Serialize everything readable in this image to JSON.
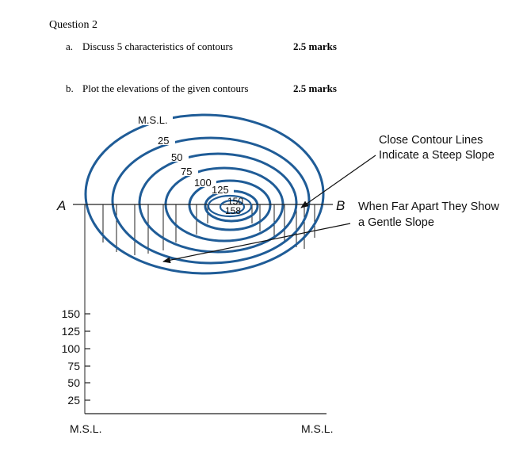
{
  "question": {
    "title": "Question 2",
    "part_a": {
      "letter": "a.",
      "text": "Discuss 5 characteristics of contours",
      "marks": "2.5 marks"
    },
    "part_b": {
      "letter": "b.",
      "text": "Plot the elevations of the given contours",
      "marks": "2.5 marks"
    }
  },
  "figure": {
    "contour_labels": [
      "M.S.L.",
      "25",
      "50",
      "75",
      "100",
      "125",
      "150",
      "158"
    ],
    "point_a": "A",
    "point_b": "B",
    "annotation_steep_line1": "Close Contour Lines",
    "annotation_steep_line2": "Indicate a Steep Slope",
    "annotation_gentle_line1": "When Far Apart They Show",
    "annotation_gentle_line2": "a Gentle Slope",
    "y_axis_ticks": [
      "150",
      "125",
      "100",
      "75",
      "50",
      "25"
    ],
    "baseline_left": "M.S.L.",
    "baseline_right": "M.S.L.",
    "contour_color": "#1f5c97"
  }
}
